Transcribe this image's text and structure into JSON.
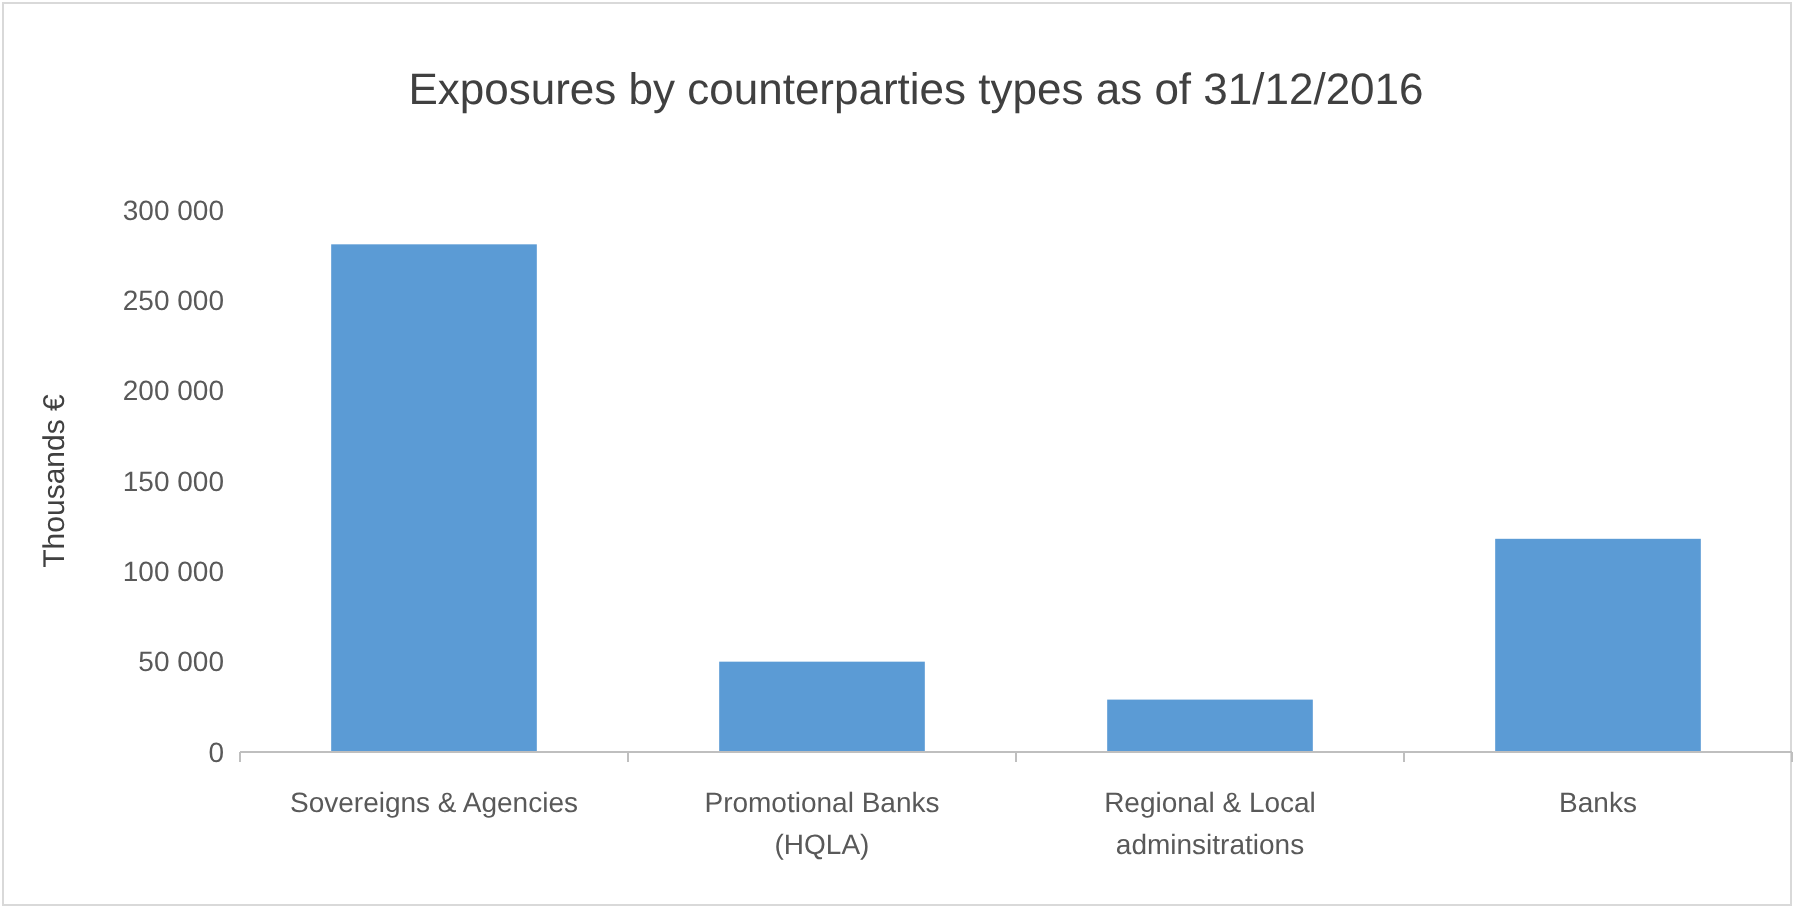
{
  "chart_data": {
    "type": "bar",
    "title": "Exposures by counterparties types as of 31/12/2016",
    "ylabel": "Thousands €",
    "categories": [
      "Sovereigns & Agencies",
      "Promotional Banks (HQLA)",
      "Regional & Local adminsitrations",
      "Banks"
    ],
    "values": [
      281000,
      50000,
      29000,
      118000
    ],
    "color": "#5b9bd5",
    "ylim": [
      0,
      300000
    ],
    "yticks": [
      {
        "value": 0,
        "label": "0"
      },
      {
        "value": 50000,
        "label": "50 000"
      },
      {
        "value": 100000,
        "label": "100 000"
      },
      {
        "value": 150000,
        "label": "150 000"
      },
      {
        "value": 200000,
        "label": "200 000"
      },
      {
        "value": 250000,
        "label": "250 000"
      },
      {
        "value": 300000,
        "label": "300 000"
      }
    ],
    "grid": false
  }
}
